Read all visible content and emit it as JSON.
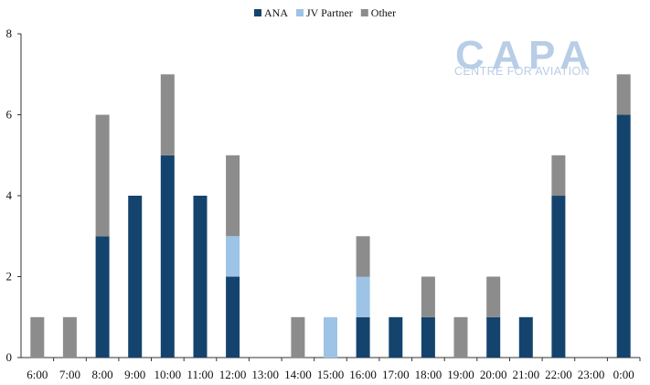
{
  "chart_data": {
    "type": "bar",
    "stacked": true,
    "categories": [
      "6:00",
      "7:00",
      "8:00",
      "9:00",
      "10:00",
      "11:00",
      "12:00",
      "13:00",
      "14:00",
      "15:00",
      "16:00",
      "17:00",
      "18:00",
      "19:00",
      "20:00",
      "21:00",
      "22:00",
      "23:00",
      "0:00"
    ],
    "series": [
      {
        "name": "ANA",
        "color": "#14446e",
        "values": [
          0,
          0,
          3,
          4,
          5,
          4,
          2,
          0,
          0,
          0,
          1,
          1,
          1,
          0,
          1,
          1,
          4,
          0,
          6
        ]
      },
      {
        "name": "JV Partner",
        "color": "#9dc3e6",
        "values": [
          0,
          0,
          0,
          0,
          0,
          0,
          1,
          0,
          0,
          1,
          1,
          0,
          0,
          0,
          0,
          0,
          0,
          0,
          0
        ]
      },
      {
        "name": "Other",
        "color": "#8c8c8c",
        "values": [
          1,
          1,
          3,
          0,
          2,
          0,
          2,
          0,
          1,
          0,
          1,
          0,
          1,
          1,
          1,
          0,
          1,
          0,
          1
        ]
      }
    ],
    "ylim": [
      0,
      8
    ],
    "yticks": [
      "0",
      "2",
      "4",
      "6",
      "8"
    ],
    "grid": false,
    "legend_position": "top-center"
  },
  "watermark": {
    "main": "CAPA",
    "sub": "CENTRE FOR AVIATION",
    "color": "#b8cde6"
  }
}
